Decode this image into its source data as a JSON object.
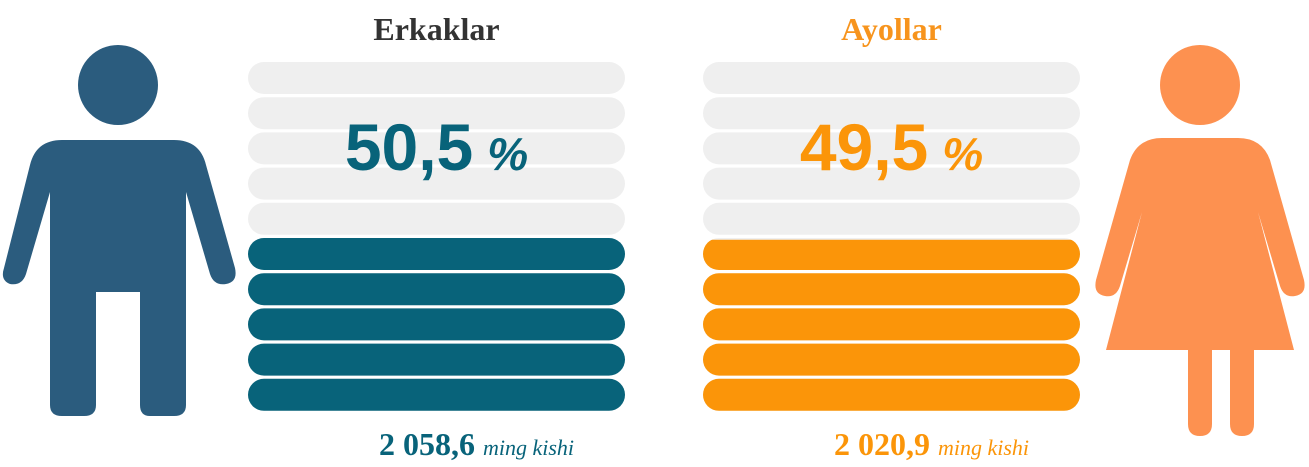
{
  "chart_data": {
    "type": "pictorial-bar",
    "ylim": [
      0,
      100
    ],
    "series": [
      {
        "name": "Erkaklar",
        "color": "#08637a",
        "title_color": "#333333",
        "icon_color": "#2b5c7e",
        "values": [
          50.5
        ],
        "value_labels": [
          "50,5"
        ],
        "percent_sign": "%",
        "count": 2058.6,
        "count_label": "2 058,6",
        "count_unit": "ming kishi"
      },
      {
        "name": "Ayollar",
        "color": "#fb9509",
        "title_color": "#f7941d",
        "icon_color": "#fd9150",
        "values": [
          49.5
        ],
        "value_labels": [
          "49,5"
        ],
        "percent_sign": "%",
        "count": 2020.9,
        "count_label": "2 020,9",
        "count_unit": "ming kishi"
      }
    ]
  }
}
